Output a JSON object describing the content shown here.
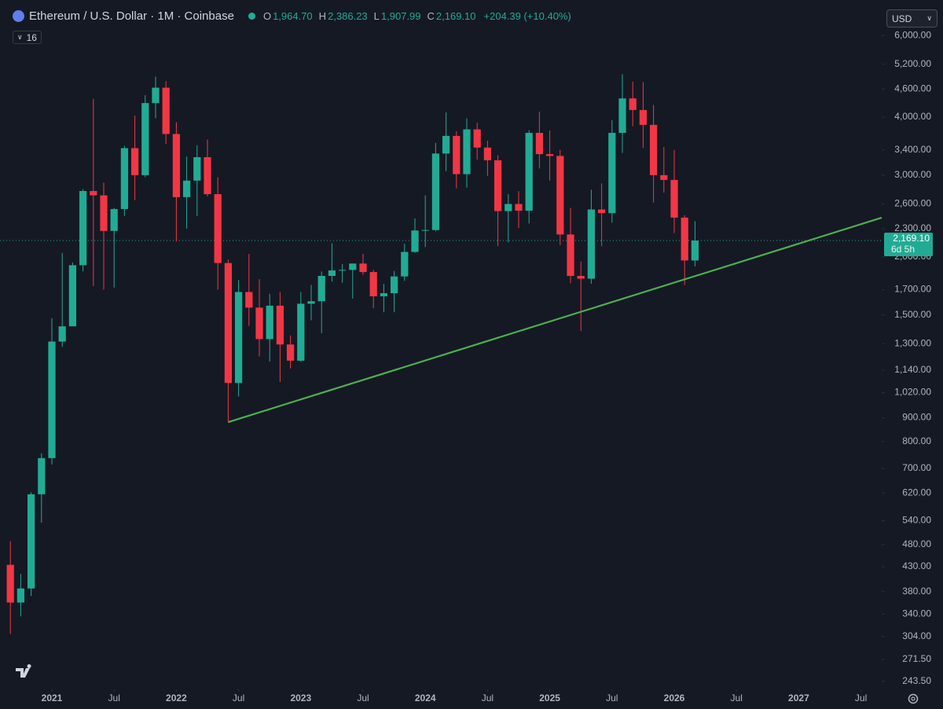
{
  "header": {
    "title": "Ethereum / U.S. Dollar · 1M · Coinbase",
    "ohlc": [
      {
        "key": "O",
        "value": "1,964.70"
      },
      {
        "key": "H",
        "value": "2,386.23"
      },
      {
        "key": "L",
        "value": "1,907.99"
      },
      {
        "key": "C",
        "value": "2,169.10"
      }
    ],
    "change": "+204.39 (+10.40%)",
    "indicator_count": "16",
    "currency": "USD"
  },
  "chart_data": {
    "type": "candlestick",
    "log_scale": true,
    "up_color": "#22ab94",
    "down_color": "#f23645",
    "x": [
      "2020-09",
      "2020-10",
      "2020-11",
      "2020-12",
      "2021-01",
      "2021-02",
      "2021-03",
      "2021-04",
      "2021-05",
      "2021-06",
      "2021-07",
      "2021-08",
      "2021-09",
      "2021-10",
      "2021-11",
      "2021-12",
      "2022-01",
      "2022-02",
      "2022-03",
      "2022-04",
      "2022-05",
      "2022-06",
      "2022-07",
      "2022-08",
      "2022-09",
      "2022-10",
      "2022-11",
      "2022-12",
      "2023-01",
      "2023-02",
      "2023-03",
      "2023-04",
      "2023-05",
      "2023-06",
      "2023-07",
      "2023-08",
      "2023-09",
      "2023-10",
      "2023-11",
      "2023-12",
      "2024-01",
      "2024-02",
      "2024-03",
      "2024-04",
      "2024-05",
      "2024-06",
      "2024-07",
      "2024-08",
      "2024-09",
      "2024-10",
      "2024-11",
      "2024-12",
      "2025-01",
      "2025-02",
      "2025-03",
      "2025-04",
      "2025-05",
      "2025-06",
      "2025-07",
      "2025-08",
      "2025-09",
      "2025-10",
      "2025-11",
      "2025-12",
      "2026-01",
      "2026-02",
      "2026-03"
    ],
    "open": [
      434,
      360,
      386,
      616,
      737,
      1314,
      1417,
      1919,
      2773,
      2714,
      2275,
      2536,
      3430,
      3000,
      4290,
      4630,
      3680,
      2690,
      2920,
      3280,
      2730,
      1940,
      1070,
      1680,
      1555,
      1330,
      1570,
      1295,
      1195,
      1585,
      1605,
      1820,
      1870,
      1875,
      1935,
      1855,
      1645,
      1670,
      1815,
      2050,
      2280,
      2285,
      3340,
      3645,
      3015,
      3765,
      3440,
      3230,
      2510,
      2600,
      2515,
      3700,
      3330,
      3300,
      2235,
      1820,
      1795,
      2530,
      2485,
      3700,
      4390,
      4145,
      3850,
      3000,
      2930,
      2430,
      1964.7
    ],
    "high": [
      488,
      415,
      622,
      755,
      1476,
      2040,
      1945,
      2800,
      4380,
      2890,
      2550,
      3470,
      4030,
      4460,
      4890,
      4780,
      3900,
      3290,
      3480,
      3580,
      2970,
      1975,
      1785,
      2030,
      1790,
      1665,
      1680,
      1355,
      1680,
      1740,
      1860,
      2140,
      1930,
      1935,
      2030,
      1875,
      1750,
      1865,
      2135,
      2420,
      2715,
      3520,
      4095,
      3730,
      3975,
      3890,
      3560,
      3310,
      2730,
      2770,
      3750,
      4110,
      3745,
      3400,
      2550,
      1955,
      2790,
      2880,
      3940,
      4950,
      4770,
      4760,
      4250,
      3450,
      3400,
      2460,
      2386.23
    ],
    "low": [
      308,
      336,
      372,
      535,
      714,
      1280,
      1420,
      1860,
      1730,
      1700,
      1718,
      2450,
      2650,
      2970,
      3980,
      3500,
      2160,
      2300,
      2450,
      2700,
      1700,
      880,
      1000,
      1420,
      1220,
      1190,
      1075,
      1150,
      1190,
      1460,
      1370,
      1770,
      1760,
      1625,
      1830,
      1550,
      1520,
      1520,
      1775,
      2040,
      2100,
      2270,
      3060,
      2810,
      2820,
      3240,
      2990,
      2110,
      2150,
      2310,
      2360,
      3100,
      2920,
      2120,
      1755,
      1385,
      1750,
      2110,
      2370,
      3350,
      3825,
      3435,
      2620,
      2750,
      2250,
      1740,
      1907.99
    ],
    "close": [
      360,
      386,
      616,
      737,
      1314,
      1417,
      1919,
      2773,
      2714,
      2275,
      2536,
      3430,
      3000,
      4290,
      4630,
      3680,
      2690,
      2920,
      3280,
      2730,
      1940,
      1070,
      1680,
      1555,
      1330,
      1570,
      1295,
      1195,
      1585,
      1605,
      1820,
      1870,
      1875,
      1935,
      1855,
      1645,
      1670,
      1815,
      2050,
      2280,
      2285,
      3340,
      3645,
      3015,
      3765,
      3440,
      3230,
      2510,
      2600,
      2515,
      3700,
      3330,
      3300,
      2235,
      1820,
      1795,
      2530,
      2485,
      3700,
      4390,
      4145,
      3850,
      3000,
      2930,
      2430,
      1964.7,
      2169.1
    ],
    "xlim": [
      "2020-08",
      "2027-09"
    ],
    "xticks": [
      {
        "value": "2021-01",
        "label": "2021"
      },
      {
        "value": "2021-07",
        "label": "Jul"
      },
      {
        "value": "2022-01",
        "label": "2022"
      },
      {
        "value": "2022-07",
        "label": "Jul"
      },
      {
        "value": "2023-01",
        "label": "2023"
      },
      {
        "value": "2023-07",
        "label": "Jul"
      },
      {
        "value": "2024-01",
        "label": "2024"
      },
      {
        "value": "2024-07",
        "label": "Jul"
      },
      {
        "value": "2025-01",
        "label": "2025"
      },
      {
        "value": "2025-07",
        "label": "Jul"
      },
      {
        "value": "2026-01",
        "label": "2026"
      },
      {
        "value": "2026-07",
        "label": "Jul"
      },
      {
        "value": "2027-01",
        "label": "2027"
      },
      {
        "value": "2027-07",
        "label": "Jul"
      }
    ],
    "ylim": [
      234,
      6880
    ],
    "yticks": [
      {
        "value": 6000,
        "label": "6,000.00"
      },
      {
        "value": 5200,
        "label": "5,200.00"
      },
      {
        "value": 4600,
        "label": "4,600.00"
      },
      {
        "value": 4000,
        "label": "4,000.00"
      },
      {
        "value": 3400,
        "label": "3,400.00"
      },
      {
        "value": 3000,
        "label": "3,000.00"
      },
      {
        "value": 2600,
        "label": "2,600.00"
      },
      {
        "value": 2300,
        "label": "2,300.00"
      },
      {
        "value": 2000,
        "label": "2,000.00"
      },
      {
        "value": 1700,
        "label": "1,700.00"
      },
      {
        "value": 1500,
        "label": "1,500.00"
      },
      {
        "value": 1300,
        "label": "1,300.00"
      },
      {
        "value": 1140,
        "label": "1,140.00"
      },
      {
        "value": 1020,
        "label": "1,020.00"
      },
      {
        "value": 900,
        "label": "900.00"
      },
      {
        "value": 800,
        "label": "800.00"
      },
      {
        "value": 700,
        "label": "700.00"
      },
      {
        "value": 620,
        "label": "620.00"
      },
      {
        "value": 540,
        "label": "540.00"
      },
      {
        "value": 480,
        "label": "480.00"
      },
      {
        "value": 430,
        "label": "430.00"
      },
      {
        "value": 380,
        "label": "380.00"
      },
      {
        "value": 340,
        "label": "340.00"
      },
      {
        "value": 304,
        "label": "304.00"
      },
      {
        "value": 271.5,
        "label": "271.50"
      },
      {
        "value": 243.5,
        "label": "243.50"
      }
    ],
    "last_price": {
      "value": 2169.1,
      "label": "2,169.10"
    },
    "countdown": "6d 5h",
    "trendline": {
      "x": [
        "2022-06",
        "2027-09"
      ],
      "values": [
        881,
        2429
      ],
      "color": "#4caf50"
    }
  }
}
